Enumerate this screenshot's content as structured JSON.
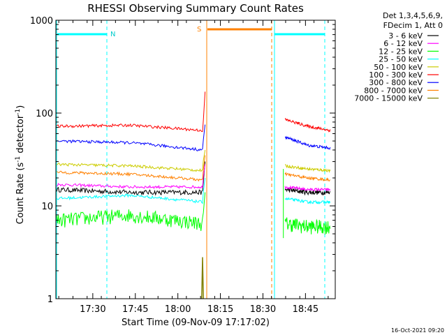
{
  "chart_data": {
    "type": "line",
    "title": "RHESSI Observing Summary Count Rates",
    "xlabel": "Start Time (09-Nov-09 17:17:02)",
    "ylabel_main": "Count Rate (s",
    "ylabel_sup1": "-1",
    "ylabel_mid": " detector",
    "ylabel_sup2": "-1",
    "ylabel_end": ")",
    "y_scale": "log",
    "ylim": [
      1,
      1000
    ],
    "xlim_minutes": [
      17.283,
      18.925
    ],
    "x_ticks": [
      {
        "t": 17.5,
        "label": "17:30"
      },
      {
        "t": 17.75,
        "label": "17:45"
      },
      {
        "t": 18.0,
        "label": "18:00"
      },
      {
        "t": 18.25,
        "label": "18:15"
      },
      {
        "t": 18.5,
        "label": "18:30"
      },
      {
        "t": 18.75,
        "label": "18:45"
      }
    ],
    "y_ticks": [
      {
        "v": 1,
        "label": "1"
      },
      {
        "v": 10,
        "label": "10"
      },
      {
        "v": 100,
        "label": "100"
      },
      {
        "v": 1000,
        "label": "1000"
      }
    ],
    "legend": {
      "placement": "right",
      "header1": "Det 1,3,4,5,6,9,",
      "header2": "FDecim 1, Att 0"
    },
    "series": [
      {
        "name": "3 - 6 keV",
        "color": "#000000",
        "pre": [
          15,
          14,
          14
        ],
        "post": [
          15,
          14,
          14
        ]
      },
      {
        "name": "6 - 12 keV",
        "color": "#ff00ff",
        "pre": [
          17,
          16,
          16
        ],
        "post": [
          16,
          15,
          15
        ]
      },
      {
        "name": "12 - 25 keV",
        "color": "#00ff00",
        "pre": [
          7,
          8,
          6.5
        ],
        "post": [
          6.5,
          6,
          6
        ]
      },
      {
        "name": "25 - 50 keV",
        "color": "#00ffff",
        "pre": [
          12,
          13,
          11
        ],
        "post": [
          12,
          11,
          11
        ]
      },
      {
        "name": "50 - 100 keV",
        "color": "#cccc00",
        "pre": [
          28,
          27,
          24
        ],
        "post": [
          27,
          25,
          24
        ]
      },
      {
        "name": "100 - 300 keV",
        "color": "#ff0000",
        "pre": [
          72,
          74,
          65
        ],
        "post": [
          85,
          72,
          65
        ]
      },
      {
        "name": "300 - 800 keV",
        "color": "#0000ff",
        "pre": [
          50,
          48,
          40
        ],
        "post": [
          55,
          45,
          42
        ]
      },
      {
        "name": "800 - 7000 keV",
        "color": "#ff8000",
        "pre": [
          23,
          22,
          19
        ],
        "post": [
          22,
          20,
          19
        ]
      },
      {
        "name": "7000 - 15000 keV",
        "color": "#808000",
        "pre": [],
        "post": []
      }
    ],
    "annotations": [
      {
        "label": "N",
        "color": "#00cccc"
      },
      {
        "label": "S",
        "color": "#ff8000"
      }
    ]
  },
  "footer": {
    "timestamp": "16-Oct-2021 09:20"
  }
}
